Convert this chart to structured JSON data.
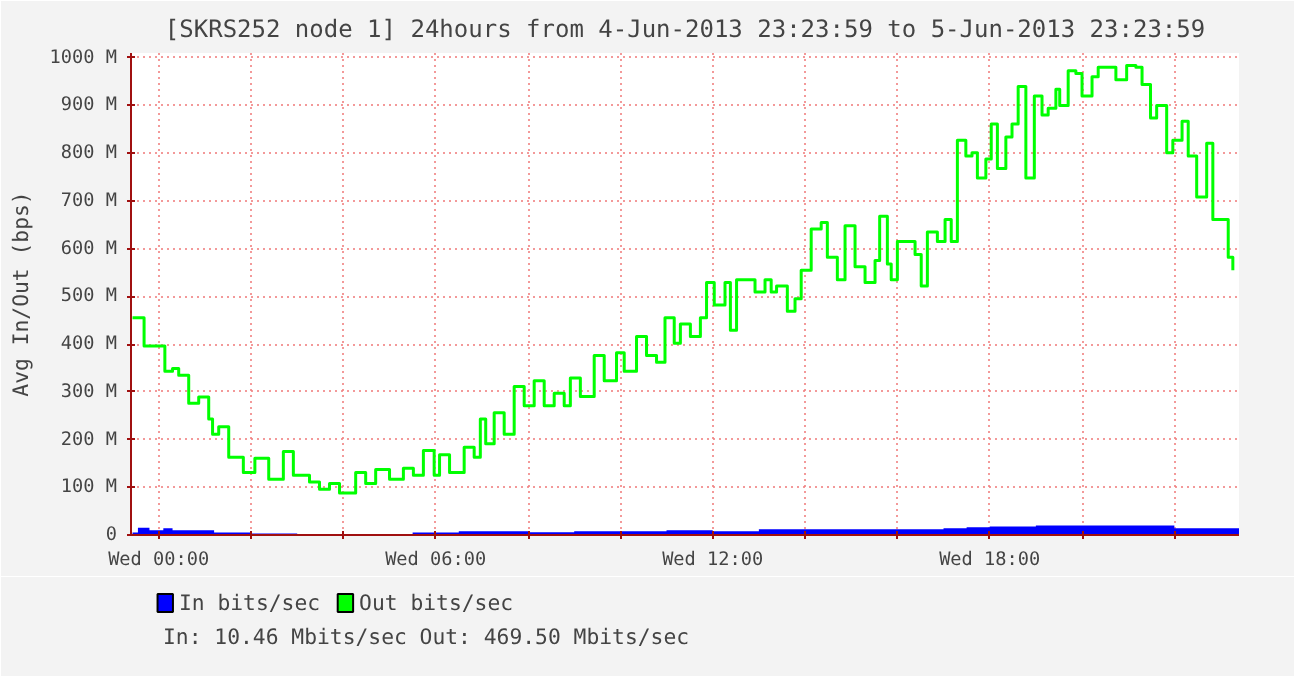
{
  "chart_data": {
    "type": "step",
    "title": "[SKRS252 node 1] 24hours from 4-Jun-2013 23:23:59 to 5-Jun-2013 23:23:59",
    "ylabel": "Avg In/Out (bps)",
    "annotations": [
      "In: 10.46 Mbits/sec   Out: 469.50 Mbits/sec"
    ],
    "xlim": [
      "2013-06-04T23:24",
      "2013-06-05T23:24"
    ],
    "ylim": [
      0,
      1010
    ],
    "xticks": [
      {
        "value": "2013-06-05T00:00",
        "label": "Wed 00:00"
      },
      {
        "value": "2013-06-05T02:00",
        "label": null
      },
      {
        "value": "2013-06-05T04:00",
        "label": null
      },
      {
        "value": "2013-06-05T06:00",
        "label": "Wed 06:00"
      },
      {
        "value": "2013-06-05T08:00",
        "label": null
      },
      {
        "value": "2013-06-05T10:00",
        "label": null
      },
      {
        "value": "2013-06-05T12:00",
        "label": "Wed 12:00"
      },
      {
        "value": "2013-06-05T14:00",
        "label": null
      },
      {
        "value": "2013-06-05T16:00",
        "label": null
      },
      {
        "value": "2013-06-05T18:00",
        "label": "Wed 18:00"
      },
      {
        "value": "2013-06-05T20:00",
        "label": null
      },
      {
        "value": "2013-06-05T22:00",
        "label": null
      }
    ],
    "yticks": [
      0,
      {
        "value": 100,
        "label": "100 M"
      },
      {
        "value": 200,
        "label": "200 M"
      },
      {
        "value": 300,
        "label": "300 M"
      },
      {
        "value": 400,
        "label": "400 M"
      },
      {
        "value": 500,
        "label": "500 M"
      },
      {
        "value": 600,
        "label": "600 M"
      },
      {
        "value": 700,
        "label": "700 M"
      },
      {
        "value": 800,
        "label": "800 M"
      },
      {
        "value": 900,
        "label": "900 M"
      },
      {
        "value": 1000,
        "label": "1000 M"
      }
    ],
    "grid": true,
    "legend": "bottom left",
    "series": [
      {
        "name": "In bits/sec",
        "type": "area",
        "color": "#0000ff",
        "x": [
          "2013-06-04T23:26",
          "2013-06-04T23:33",
          "2013-06-04T23:48",
          "2013-06-05T00:06",
          "2013-06-05T00:18",
          "2013-06-05T00:36",
          "2013-06-05T01:12",
          "2013-06-05T02:00",
          "2013-06-05T03:00",
          "2013-06-05T04:00",
          "2013-06-05T05:00",
          "2013-06-05T05:30",
          "2013-06-05T06:00",
          "2013-06-05T06:30",
          "2013-06-05T08:00",
          "2013-06-05T09:00",
          "2013-06-05T10:00",
          "2013-06-05T11:00",
          "2013-06-05T12:00",
          "2013-06-05T13:00",
          "2013-06-05T14:00",
          "2013-06-05T15:00",
          "2013-06-05T16:00",
          "2013-06-05T17:00",
          "2013-06-05T17:30",
          "2013-06-05T18:00",
          "2013-06-05T19:00",
          "2013-06-05T20:00",
          "2013-06-05T21:00",
          "2013-06-05T22:00",
          "2013-06-05T23:00",
          "2013-06-05T23:24"
        ],
        "values": [
          5,
          15,
          10,
          14,
          10,
          10,
          5,
          3,
          2,
          2,
          2,
          5,
          5,
          8,
          6,
          8,
          8,
          10,
          8,
          12,
          12,
          12,
          12,
          14,
          16,
          18,
          20,
          20,
          20,
          14,
          14,
          14
        ]
      },
      {
        "name": "Out bits/sec",
        "color": "#00ff00",
        "x": [
          "2013-06-04T23:26",
          "2013-06-04T23:41",
          "2013-06-05T00:08",
          "2013-06-05T00:18",
          "2013-06-05T00:26",
          "2013-06-05T00:39",
          "2013-06-05T00:52",
          "2013-06-05T01:05",
          "2013-06-05T01:10",
          "2013-06-05T01:18",
          "2013-06-05T01:31",
          "2013-06-05T01:50",
          "2013-06-05T02:05",
          "2013-06-05T02:23",
          "2013-06-05T02:42",
          "2013-06-05T02:55",
          "2013-06-05T03:16",
          "2013-06-05T03:29",
          "2013-06-05T03:42",
          "2013-06-05T03:55",
          "2013-06-05T04:16",
          "2013-06-05T04:29",
          "2013-06-05T04:42",
          "2013-06-05T05:00",
          "2013-06-05T05:18",
          "2013-06-05T05:31",
          "2013-06-05T05:44",
          "2013-06-05T05:58",
          "2013-06-05T06:05",
          "2013-06-05T06:18",
          "2013-06-05T06:37",
          "2013-06-05T06:50",
          "2013-06-05T06:58",
          "2013-06-05T07:05",
          "2013-06-05T07:16",
          "2013-06-05T07:29",
          "2013-06-05T07:42",
          "2013-06-05T07:55",
          "2013-06-05T08:08",
          "2013-06-05T08:21",
          "2013-06-05T08:34",
          "2013-06-05T08:47",
          "2013-06-05T08:55",
          "2013-06-05T09:08",
          "2013-06-05T09:26",
          "2013-06-05T09:39",
          "2013-06-05T09:55",
          "2013-06-05T10:05",
          "2013-06-05T10:21",
          "2013-06-05T10:34",
          "2013-06-05T10:47",
          "2013-06-05T10:58",
          "2013-06-05T11:10",
          "2013-06-05T11:18",
          "2013-06-05T11:31",
          "2013-06-05T11:44",
          "2013-06-05T11:52",
          "2013-06-05T12:02",
          "2013-06-05T12:16",
          "2013-06-05T12:23",
          "2013-06-05T12:31",
          "2013-06-05T12:44",
          "2013-06-05T12:55",
          "2013-06-05T13:08",
          "2013-06-05T13:16",
          "2013-06-05T13:23",
          "2013-06-05T13:37",
          "2013-06-05T13:47",
          "2013-06-05T13:55",
          "2013-06-05T14:08",
          "2013-06-05T14:21",
          "2013-06-05T14:29",
          "2013-06-05T14:42",
          "2013-06-05T14:52",
          "2013-06-05T15:05",
          "2013-06-05T15:18",
          "2013-06-05T15:31",
          "2013-06-05T15:37",
          "2013-06-05T15:47",
          "2013-06-05T15:52",
          "2013-06-05T16:00",
          "2013-06-05T16:13",
          "2013-06-05T16:23",
          "2013-06-05T16:31",
          "2013-06-05T16:39",
          "2013-06-05T16:52",
          "2013-06-05T17:02",
          "2013-06-05T17:10",
          "2013-06-05T17:18",
          "2013-06-05T17:29",
          "2013-06-05T17:37",
          "2013-06-05T17:44",
          "2013-06-05T17:55",
          "2013-06-05T18:02",
          "2013-06-05T18:10",
          "2013-06-05T18:21",
          "2013-06-05T18:29",
          "2013-06-05T18:37",
          "2013-06-05T18:47",
          "2013-06-05T18:58",
          "2013-06-05T19:08",
          "2013-06-05T19:16",
          "2013-06-05T19:26",
          "2013-06-05T19:31",
          "2013-06-05T19:42",
          "2013-06-05T19:52",
          "2013-06-05T20:00",
          "2013-06-05T20:13",
          "2013-06-05T20:21",
          "2013-06-05T20:34",
          "2013-06-05T20:44",
          "2013-06-05T20:58",
          "2013-06-05T21:10",
          "2013-06-05T21:18",
          "2013-06-05T21:29",
          "2013-06-05T21:37",
          "2013-06-05T21:50",
          "2013-06-05T21:58",
          "2013-06-05T22:10",
          "2013-06-05T22:18",
          "2013-06-05T22:29",
          "2013-06-05T22:42",
          "2013-06-05T22:50",
          "2013-06-05T23:02",
          "2013-06-05T23:10",
          "2013-06-05T23:16"
        ],
        "values": [
          455,
          396,
          343,
          349,
          335,
          276,
          289,
          243,
          211,
          227,
          163,
          131,
          161,
          117,
          175,
          125,
          111,
          96,
          108,
          88,
          131,
          108,
          137,
          117,
          140,
          125,
          177,
          125,
          168,
          131,
          184,
          163,
          243,
          191,
          256,
          211,
          311,
          271,
          323,
          271,
          297,
          271,
          329,
          290,
          376,
          323,
          382,
          343,
          416,
          376,
          362,
          455,
          402,
          442,
          416,
          455,
          529,
          482,
          529,
          429,
          535,
          535,
          509,
          535,
          509,
          522,
          469,
          495,
          555,
          641,
          655,
          582,
          535,
          648,
          562,
          529,
          575,
          668,
          568,
          535,
          615,
          615,
          588,
          522,
          635,
          615,
          661,
          615,
          827,
          794,
          801,
          748,
          788,
          861,
          768,
          834,
          861,
          940,
          748,
          920,
          880,
          894,
          934,
          900,
          973,
          967,
          920,
          960,
          980,
          980,
          954,
          984,
          980,
          944,
          874,
          900,
          801,
          827,
          867,
          794,
          708,
          821,
          661,
          661,
          582,
          555
        ]
      }
    ]
  }
}
